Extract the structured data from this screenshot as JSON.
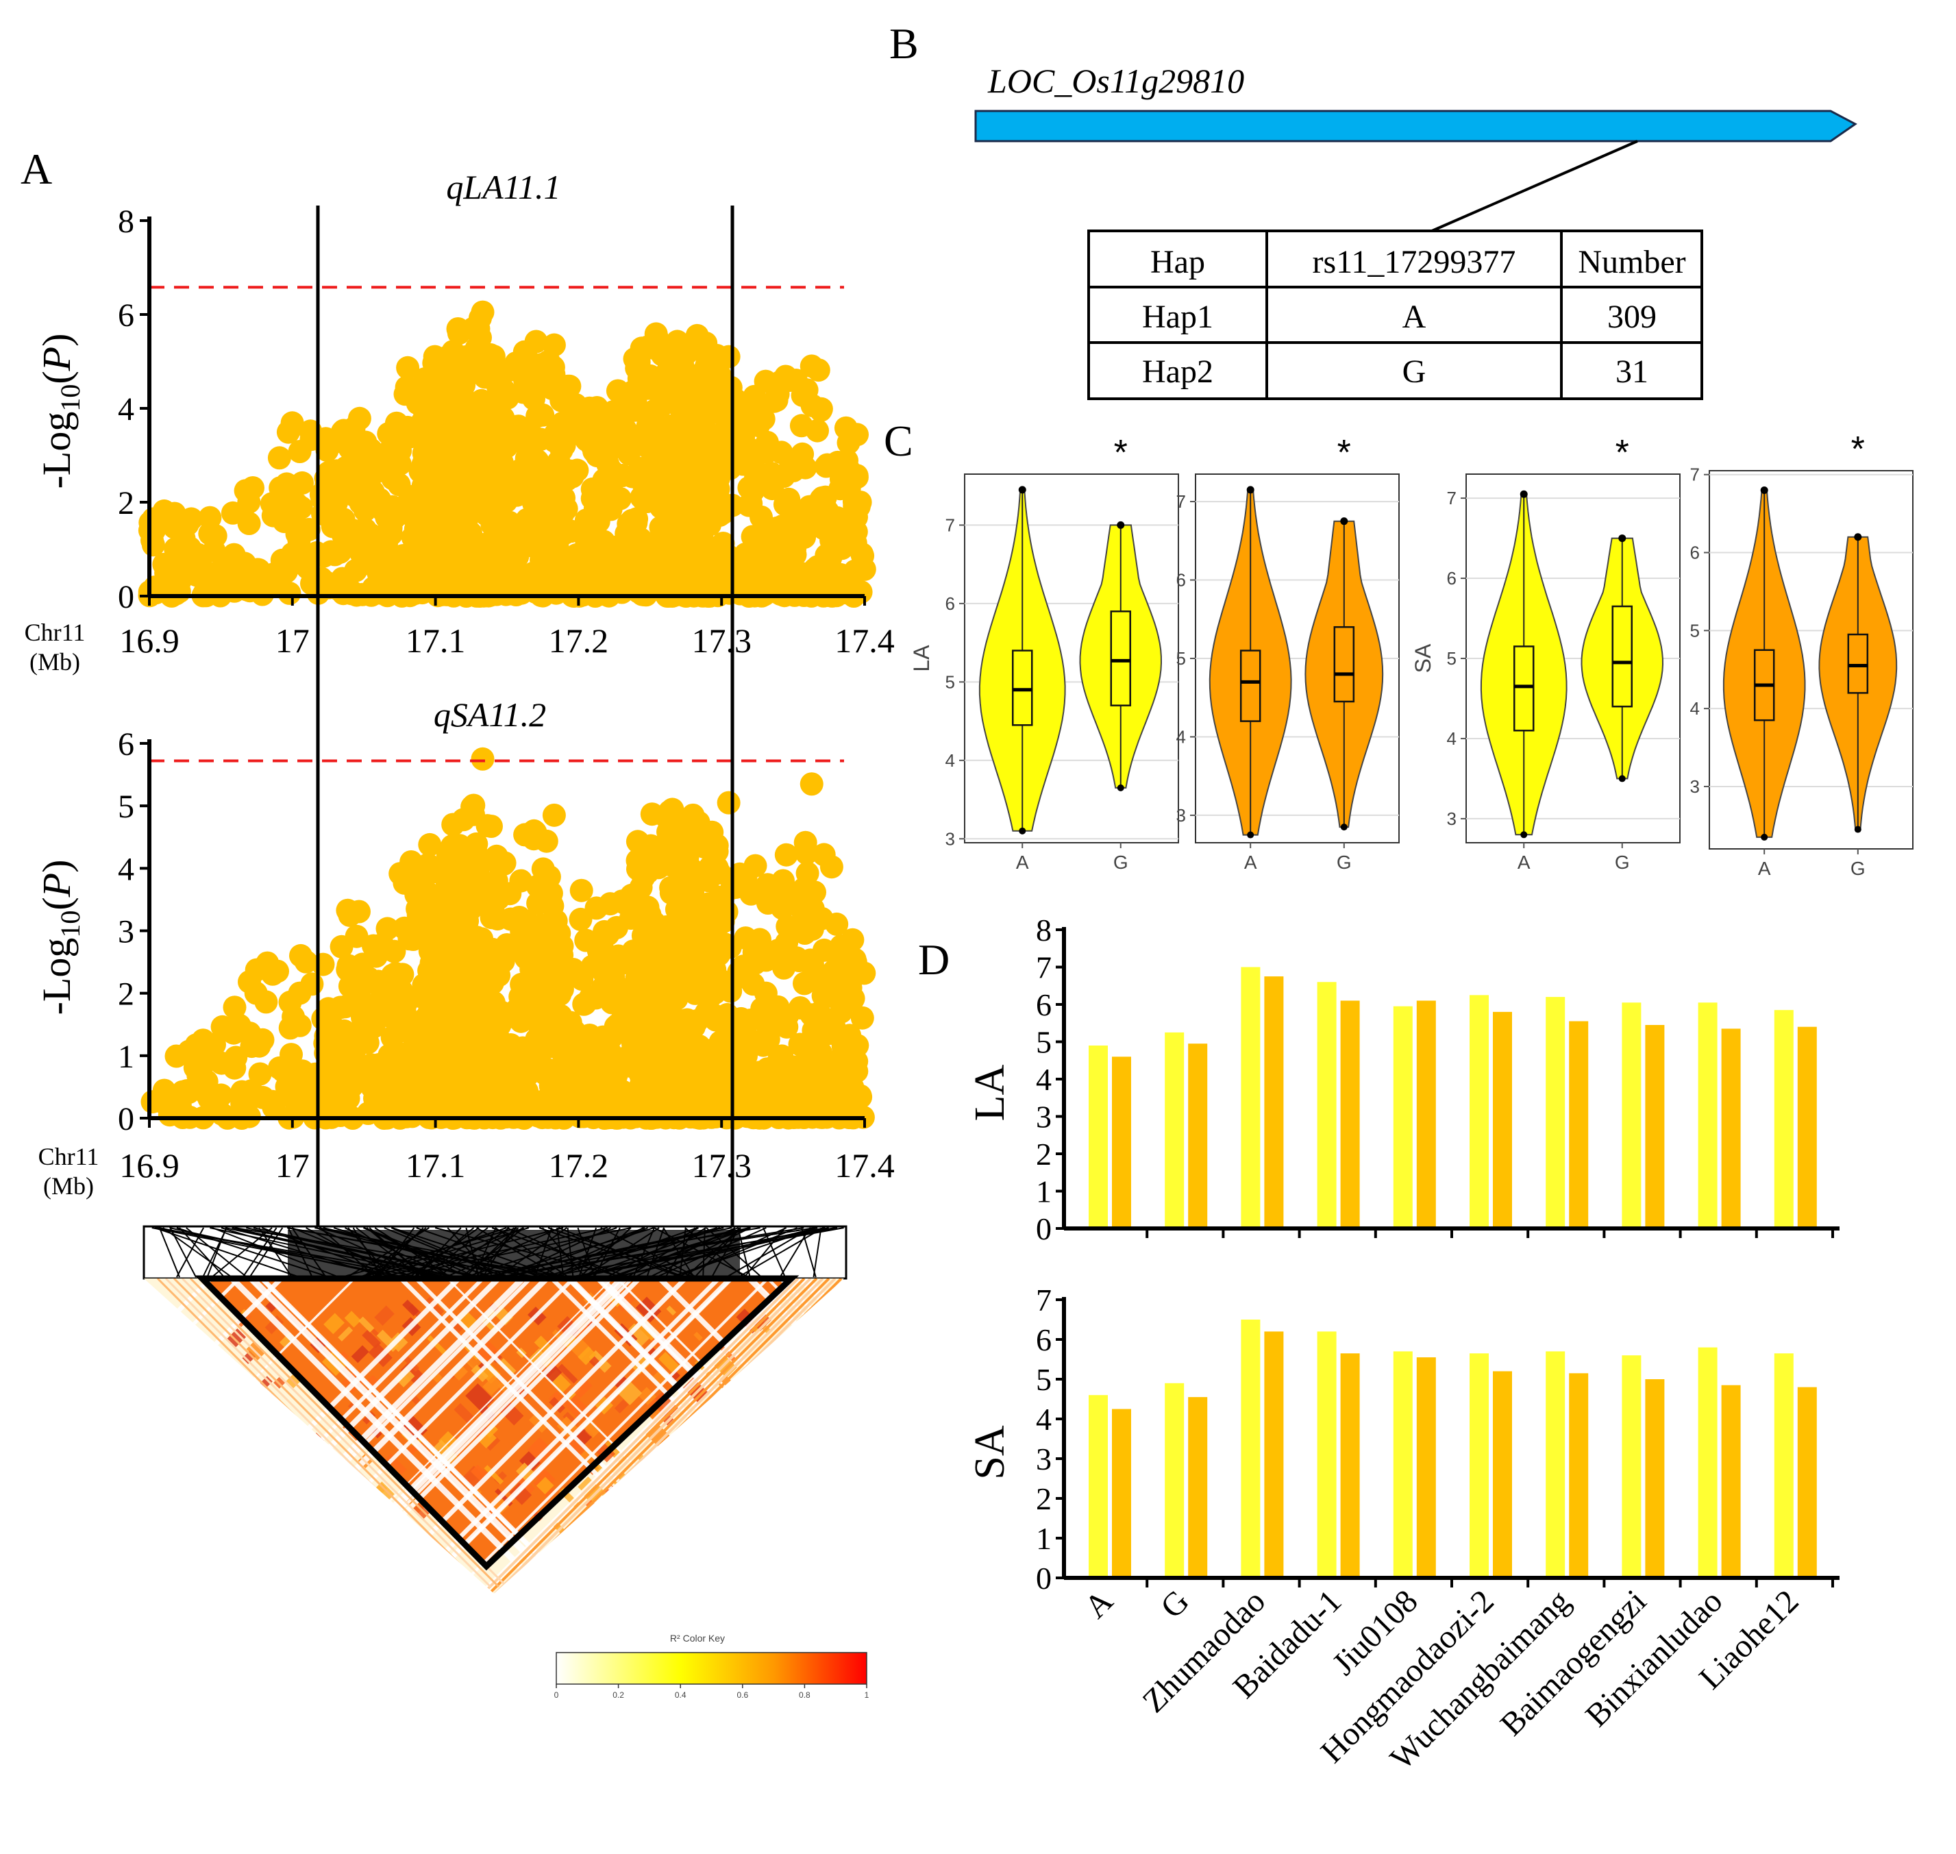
{
  "panel_labels": {
    "a": "A",
    "b": "B",
    "c": "C",
    "d": "D"
  },
  "colors": {
    "scatter": "#FFC000",
    "threshold": "#EE1C1C",
    "gene_fill": "#00AEEF",
    "violin_yellow": "#FFFF0A",
    "violin_orange": "#FFA000",
    "bar_light": "#FFFF33",
    "bar_dark": "#FFC000"
  },
  "manhattan_plots": [
    {
      "qtl": "qLA11.1",
      "y_label": "-Log10(P)",
      "y_ticks": [
        "0",
        "2",
        "4",
        "6",
        "8"
      ],
      "ylim": [
        0,
        8
      ],
      "threshold": 6.58,
      "chr_label_1": "Chr11",
      "chr_label_2": "(Mb)",
      "x_ticks": [
        "16.9",
        "17",
        "17.1",
        "17.2",
        "17.3",
        "17.4"
      ],
      "xlim": [
        16.9,
        17.4
      ],
      "qtl_interval": [
        17.017,
        17.305
      ]
    },
    {
      "qtl": "qSA11.2",
      "y_label": "-Log10(P)",
      "y_ticks": [
        "0",
        "1",
        "2",
        "3",
        "4",
        "5",
        "6"
      ],
      "ylim": [
        0,
        6
      ],
      "threshold": 5.72,
      "chr_label_1": "Chr11",
      "chr_label_2": "(Mb)",
      "x_ticks": [
        "16.9",
        "17",
        "17.1",
        "17.2",
        "17.3",
        "17.4"
      ],
      "xlim": [
        16.9,
        17.4
      ],
      "qtl_interval": [
        17.017,
        17.305
      ]
    }
  ],
  "ld_heatmap": {
    "color_key_title": "R² Color Key",
    "key_ticks": [
      "0",
      "0.2",
      "0.4",
      "0.6",
      "0.8",
      "1"
    ]
  },
  "gene": {
    "name": "LOC_Os11g29810",
    "haplotype_table": {
      "headers": [
        "Hap",
        "rs11_17299377",
        "Number"
      ],
      "rows": [
        [
          "Hap1",
          "A",
          "309"
        ],
        [
          "Hap2",
          "G",
          "31"
        ]
      ]
    }
  },
  "violins": [
    {
      "trait": "LA",
      "y_label": "LA",
      "y_ticks": [
        "3",
        "4",
        "5",
        "6",
        "7"
      ],
      "ylim": [
        2.95,
        7.65
      ],
      "color": "yellow",
      "significance": "*",
      "groups": [
        "A",
        "G"
      ],
      "stats": [
        {
          "median": 4.9,
          "q1": 4.45,
          "q3": 5.4,
          "wmin": 3.1,
          "wmax": 7.45
        },
        {
          "median": 5.27,
          "q1": 4.7,
          "q3": 5.9,
          "wmin": 3.65,
          "wmax": 7.0
        }
      ]
    },
    {
      "trait": "LA",
      "y_label": "",
      "y_ticks": [
        "3",
        "4",
        "5",
        "6",
        "7"
      ],
      "ylim": [
        2.65,
        7.35
      ],
      "color": "orange",
      "significance": "*",
      "groups": [
        "A",
        "G"
      ],
      "stats": [
        {
          "median": 4.7,
          "q1": 4.2,
          "q3": 5.1,
          "wmin": 2.75,
          "wmax": 7.15
        },
        {
          "median": 4.8,
          "q1": 4.45,
          "q3": 5.4,
          "wmin": 2.85,
          "wmax": 6.75
        }
      ]
    },
    {
      "trait": "SA",
      "y_label": "SA",
      "y_ticks": [
        "3",
        "4",
        "5",
        "6",
        "7"
      ],
      "ylim": [
        2.7,
        7.3
      ],
      "color": "yellow",
      "significance": "*",
      "groups": [
        "A",
        "G"
      ],
      "stats": [
        {
          "median": 4.65,
          "q1": 4.1,
          "q3": 5.15,
          "wmin": 2.8,
          "wmax": 7.05
        },
        {
          "median": 4.95,
          "q1": 4.4,
          "q3": 5.65,
          "wmin": 3.5,
          "wmax": 6.5
        }
      ]
    },
    {
      "trait": "SA",
      "y_label": "",
      "y_ticks": [
        "3",
        "4",
        "5",
        "6",
        "7"
      ],
      "ylim": [
        2.2,
        7.05
      ],
      "color": "orange",
      "significance": "*",
      "groups": [
        "A",
        "G"
      ],
      "stats": [
        {
          "median": 4.3,
          "q1": 3.85,
          "q3": 4.75,
          "wmin": 2.35,
          "wmax": 6.8
        },
        {
          "median": 4.55,
          "q1": 4.2,
          "q3": 4.95,
          "wmin": 2.45,
          "wmax": 6.2
        }
      ]
    }
  ],
  "chart_data": {
    "type": "bar",
    "panel": "D",
    "categories": [
      "A",
      "G",
      "Zhumaodao",
      "Baidadu-1",
      "Jiu0108",
      "Hongmaodaozi-2",
      "Wuchangbaimang",
      "Baimaogengzi",
      "Binxianludao",
      "Liaohe12"
    ],
    "charts": [
      {
        "ylabel": "LA",
        "y_ticks": [
          "0",
          "1",
          "2",
          "3",
          "4",
          "5",
          "6",
          "7",
          "8"
        ],
        "ylim": [
          0,
          8
        ],
        "series": [
          {
            "name": "light",
            "values": [
              4.9,
              5.25,
              7.0,
              6.6,
              5.95,
              6.25,
              6.2,
              6.05,
              6.05,
              5.85
            ]
          },
          {
            "name": "dark",
            "values": [
              4.6,
              4.95,
              6.75,
              6.1,
              6.1,
              5.8,
              5.55,
              5.45,
              5.35,
              5.4
            ]
          }
        ]
      },
      {
        "ylabel": "SA",
        "y_ticks": [
          "0",
          "1",
          "2",
          "3",
          "4",
          "5",
          "6",
          "7"
        ],
        "ylim": [
          0,
          7
        ],
        "series": [
          {
            "name": "light",
            "values": [
              4.6,
              4.9,
              6.5,
              6.2,
              5.7,
              5.65,
              5.7,
              5.6,
              5.8,
              5.65
            ]
          },
          {
            "name": "dark",
            "values": [
              4.25,
              4.55,
              6.2,
              5.65,
              5.55,
              5.2,
              5.15,
              5.0,
              4.85,
              4.8
            ]
          }
        ]
      }
    ]
  }
}
